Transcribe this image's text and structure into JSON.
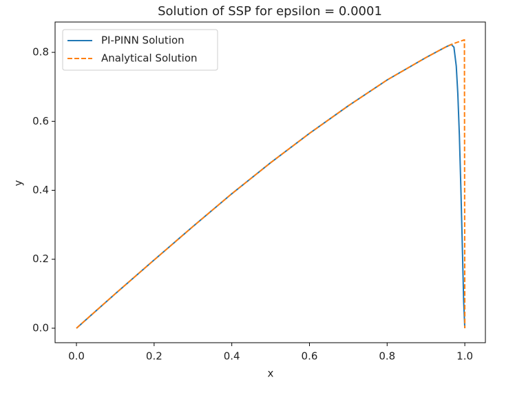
{
  "chart_data": {
    "type": "line",
    "title": "Solution of SSP for epsilon = 0.0001",
    "xlabel": "x",
    "ylabel": "y",
    "series": [
      {
        "name": "PI-PINN Solution",
        "color": "#1f77b4",
        "style": "solid",
        "x": [
          0,
          0.1,
          0.2,
          0.3,
          0.4,
          0.5,
          0.6,
          0.7,
          0.8,
          0.9,
          0.95,
          0.965,
          0.972,
          0.978,
          0.982,
          0.986,
          0.99,
          0.994,
          0.997,
          1.0
        ],
        "values": [
          0,
          0.1,
          0.198,
          0.295,
          0.39,
          0.48,
          0.565,
          0.645,
          0.72,
          0.785,
          0.815,
          0.823,
          0.815,
          0.76,
          0.68,
          0.56,
          0.4,
          0.22,
          0.08,
          0
        ]
      },
      {
        "name": "Analytical Solution",
        "color": "#ff7f0e",
        "style": "dashed",
        "x": [
          0,
          0.1,
          0.2,
          0.3,
          0.4,
          0.5,
          0.6,
          0.7,
          0.8,
          0.9,
          0.95,
          0.97,
          0.998,
          0.999,
          1.0
        ],
        "values": [
          0,
          0.1,
          0.198,
          0.295,
          0.39,
          0.48,
          0.565,
          0.645,
          0.72,
          0.785,
          0.815,
          0.825,
          0.836,
          0.836,
          0
        ]
      }
    ],
    "xlim": [
      -0.055,
      1.053
    ],
    "ylim": [
      -0.042,
      0.888
    ],
    "xticks": [
      {
        "value": 0,
        "label": "0.0"
      },
      0.2,
      0.4,
      0.6,
      0.8,
      {
        "value": 1,
        "label": "1.0"
      }
    ],
    "yticks": [
      {
        "value": 0,
        "label": "0.0"
      },
      0.2,
      0.4,
      0.6,
      0.8
    ],
    "legend": "upper left"
  }
}
